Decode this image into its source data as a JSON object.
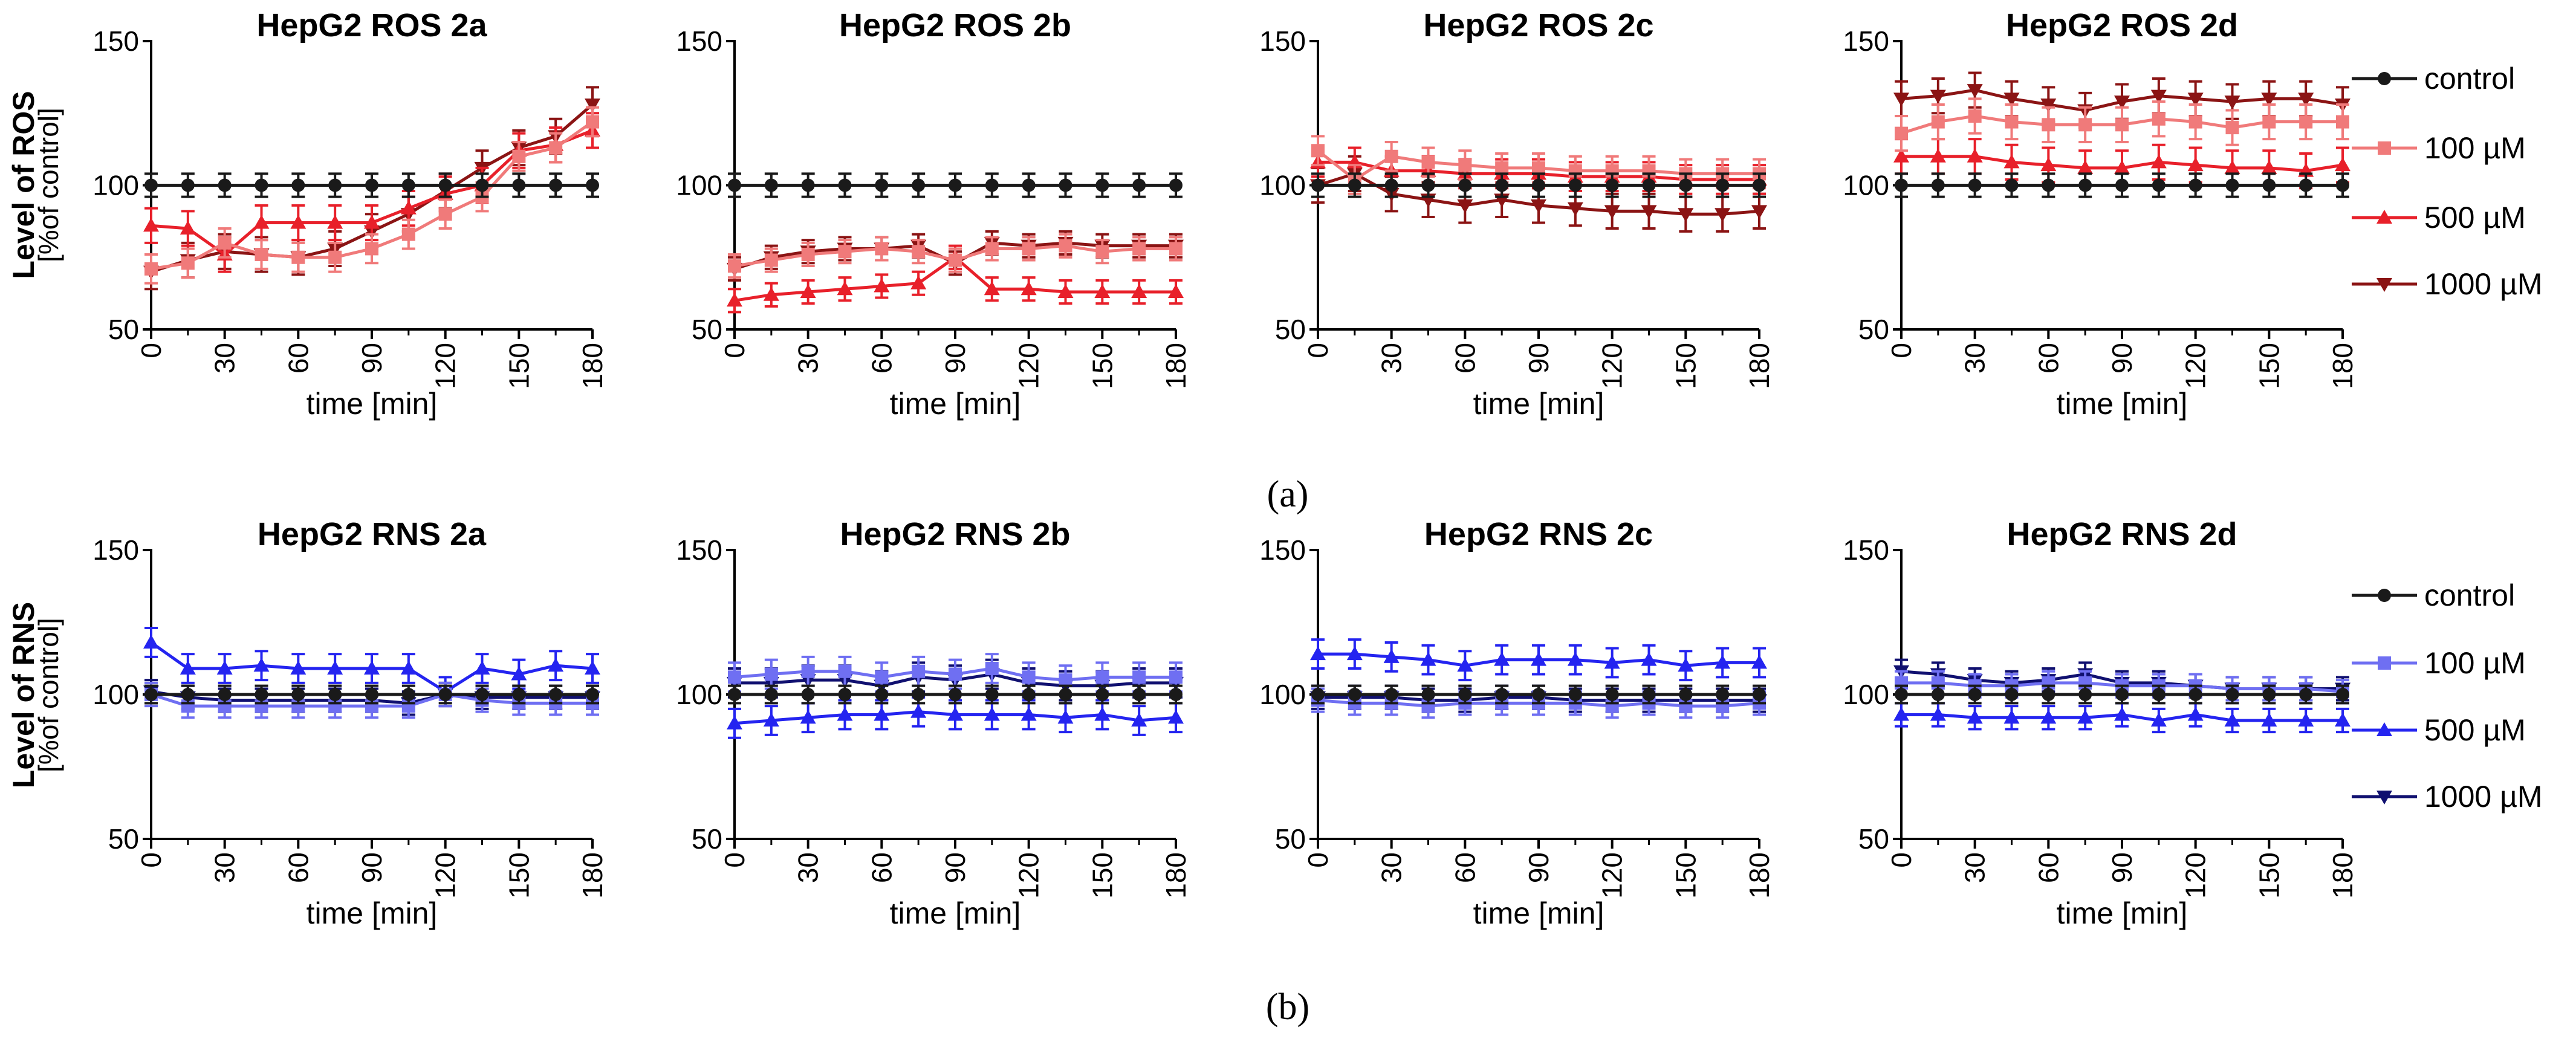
{
  "captions": {
    "a": "(a)",
    "b": "(b)"
  },
  "axes": {
    "xlabel": "time [min]",
    "x_ticks": [
      0,
      30,
      60,
      90,
      120,
      150,
      180
    ],
    "y_ticks": [
      50,
      100,
      150
    ],
    "xlim": [
      0,
      180
    ],
    "ylim": [
      50,
      150
    ],
    "ros_ylabel": "Level of ROS",
    "rns_ylabel": "Level of RNS",
    "ylabel_unit": "[%of control]"
  },
  "legend_labels": [
    "control",
    "100 µM",
    "500 µM",
    "1000 µM"
  ],
  "colors": {
    "control": "#1a1a1a",
    "ros_100": "#f07a7a",
    "ros_500": "#e8202a",
    "ros_1000": "#8b1414",
    "rns_100": "#6f6ff2",
    "rns_500": "#2424f0",
    "rns_1000": "#101070"
  },
  "chart_data": [
    {
      "type": "line",
      "row": "ros",
      "title": "HepG2 ROS 2a",
      "x": [
        0,
        15,
        30,
        45,
        60,
        75,
        90,
        105,
        120,
        135,
        150,
        165,
        180
      ],
      "series": [
        {
          "name": "control",
          "values": [
            100,
            100,
            100,
            100,
            100,
            100,
            100,
            100,
            100,
            100,
            100,
            100,
            100
          ],
          "err": 4
        },
        {
          "name": "100 µM",
          "values": [
            71,
            73,
            80,
            76,
            75,
            75,
            78,
            83,
            90,
            96,
            110,
            113,
            122
          ],
          "err": 5
        },
        {
          "name": "500 µM",
          "values": [
            86,
            85,
            76,
            87,
            87,
            87,
            87,
            92,
            97,
            100,
            112,
            114,
            119
          ],
          "err": 6
        },
        {
          "name": "1000 µM",
          "values": [
            70,
            74,
            77,
            76,
            75,
            78,
            84,
            90,
            98,
            106,
            113,
            117,
            128
          ],
          "err": 6
        }
      ]
    },
    {
      "type": "line",
      "row": "ros",
      "title": "HepG2 ROS 2b",
      "x": [
        0,
        15,
        30,
        45,
        60,
        75,
        90,
        105,
        120,
        135,
        150,
        165,
        180
      ],
      "series": [
        {
          "name": "control",
          "values": [
            100,
            100,
            100,
            100,
            100,
            100,
            100,
            100,
            100,
            100,
            100,
            100,
            100
          ],
          "err": 4
        },
        {
          "name": "100 µM",
          "values": [
            72,
            74,
            76,
            77,
            78,
            77,
            74,
            78,
            78,
            79,
            77,
            78,
            78
          ],
          "err": 4
        },
        {
          "name": "500 µM",
          "values": [
            60,
            62,
            63,
            64,
            65,
            66,
            75,
            64,
            64,
            63,
            63,
            63,
            63
          ],
          "err": 4
        },
        {
          "name": "1000 µM",
          "values": [
            71,
            75,
            77,
            78,
            78,
            79,
            73,
            80,
            79,
            80,
            79,
            79,
            79
          ],
          "err": 4
        }
      ]
    },
    {
      "type": "line",
      "row": "ros",
      "title": "HepG2 ROS 2c",
      "x": [
        0,
        15,
        30,
        45,
        60,
        75,
        90,
        105,
        120,
        135,
        150,
        165,
        180
      ],
      "series": [
        {
          "name": "control",
          "values": [
            100,
            100,
            100,
            100,
            100,
            100,
            100,
            100,
            100,
            100,
            100,
            100,
            100
          ],
          "err": 4
        },
        {
          "name": "100 µM",
          "values": [
            112,
            102,
            110,
            108,
            107,
            106,
            106,
            105,
            105,
            105,
            104,
            104,
            104
          ],
          "err": 5
        },
        {
          "name": "500 µM",
          "values": [
            108,
            108,
            105,
            105,
            104,
            104,
            104,
            103,
            103,
            103,
            102,
            102,
            102
          ],
          "err": 5
        },
        {
          "name": "1000 µM",
          "values": [
            100,
            104,
            97,
            95,
            93,
            95,
            93,
            92,
            91,
            91,
            90,
            90,
            91
          ],
          "err": 6
        }
      ]
    },
    {
      "type": "line",
      "row": "ros",
      "title": "HepG2 ROS 2d",
      "x": [
        0,
        15,
        30,
        45,
        60,
        75,
        90,
        105,
        120,
        135,
        150,
        165,
        180
      ],
      "series": [
        {
          "name": "control",
          "values": [
            100,
            100,
            100,
            100,
            100,
            100,
            100,
            100,
            100,
            100,
            100,
            100,
            100
          ],
          "err": 4
        },
        {
          "name": "100 µM",
          "values": [
            118,
            122,
            124,
            122,
            121,
            121,
            121,
            123,
            122,
            120,
            122,
            122,
            122
          ],
          "err": 6
        },
        {
          "name": "500 µM",
          "values": [
            110,
            110,
            110,
            108,
            107,
            106,
            106,
            108,
            107,
            106,
            106,
            105,
            107
          ],
          "err": 6
        },
        {
          "name": "1000 µM",
          "values": [
            130,
            131,
            133,
            130,
            128,
            126,
            129,
            131,
            130,
            129,
            130,
            130,
            128
          ],
          "err": 6
        }
      ]
    },
    {
      "type": "line",
      "row": "rns",
      "title": "HepG2 RNS 2a",
      "x": [
        0,
        15,
        30,
        45,
        60,
        75,
        90,
        105,
        120,
        135,
        150,
        165,
        180
      ],
      "series": [
        {
          "name": "control",
          "values": [
            100,
            100,
            100,
            100,
            100,
            100,
            100,
            100,
            100,
            100,
            100,
            100,
            100
          ],
          "err": 3
        },
        {
          "name": "100 µM",
          "values": [
            100,
            96,
            96,
            96,
            96,
            96,
            96,
            96,
            100,
            98,
            97,
            97,
            97
          ],
          "err": 4
        },
        {
          "name": "500 µM",
          "values": [
            118,
            109,
            109,
            110,
            109,
            109,
            109,
            109,
            101,
            109,
            107,
            110,
            109
          ],
          "err": 5
        },
        {
          "name": "1000 µM",
          "values": [
            101,
            99,
            98,
            98,
            98,
            98,
            98,
            97,
            100,
            99,
            99,
            99,
            99
          ],
          "err": 4
        }
      ]
    },
    {
      "type": "line",
      "row": "rns",
      "title": "HepG2 RNS 2b",
      "x": [
        0,
        15,
        30,
        45,
        60,
        75,
        90,
        105,
        120,
        135,
        150,
        165,
        180
      ],
      "series": [
        {
          "name": "control",
          "values": [
            100,
            100,
            100,
            100,
            100,
            100,
            100,
            100,
            100,
            100,
            100,
            100,
            100
          ],
          "err": 3
        },
        {
          "name": "100 µM",
          "values": [
            106,
            107,
            108,
            108,
            106,
            108,
            107,
            109,
            106,
            105,
            106,
            106,
            106
          ],
          "err": 5
        },
        {
          "name": "500 µM",
          "values": [
            90,
            91,
            92,
            93,
            93,
            94,
            93,
            93,
            93,
            92,
            93,
            91,
            92
          ],
          "err": 5
        },
        {
          "name": "1000 µM",
          "values": [
            104,
            104,
            105,
            105,
            103,
            106,
            105,
            107,
            104,
            103,
            103,
            104,
            104
          ],
          "err": 5
        }
      ]
    },
    {
      "type": "line",
      "row": "rns",
      "title": "HepG2 RNS 2c",
      "x": [
        0,
        15,
        30,
        45,
        60,
        75,
        90,
        105,
        120,
        135,
        150,
        165,
        180
      ],
      "series": [
        {
          "name": "control",
          "values": [
            100,
            100,
            100,
            100,
            100,
            100,
            100,
            100,
            100,
            100,
            100,
            100,
            100
          ],
          "err": 3
        },
        {
          "name": "100 µM",
          "values": [
            98,
            97,
            97,
            96,
            97,
            97,
            97,
            97,
            96,
            97,
            96,
            96,
            97
          ],
          "err": 4
        },
        {
          "name": "500 µM",
          "values": [
            114,
            114,
            113,
            112,
            110,
            112,
            112,
            112,
            111,
            112,
            110,
            111,
            111
          ],
          "err": 5
        },
        {
          "name": "1000 µM",
          "values": [
            99,
            99,
            99,
            98,
            98,
            99,
            99,
            98,
            98,
            98,
            98,
            98,
            98
          ],
          "err": 4
        }
      ]
    },
    {
      "type": "line",
      "row": "rns",
      "title": "HepG2 RNS 2d",
      "x": [
        0,
        15,
        30,
        45,
        60,
        75,
        90,
        105,
        120,
        135,
        150,
        165,
        180
      ],
      "series": [
        {
          "name": "control",
          "values": [
            100,
            100,
            100,
            100,
            100,
            100,
            100,
            100,
            100,
            100,
            100,
            100,
            100
          ],
          "err": 3
        },
        {
          "name": "100 µM",
          "values": [
            104,
            104,
            103,
            103,
            104,
            104,
            103,
            103,
            103,
            102,
            102,
            102,
            101
          ],
          "err": 4
        },
        {
          "name": "500 µM",
          "values": [
            93,
            93,
            92,
            92,
            92,
            92,
            93,
            91,
            93,
            91,
            91,
            91,
            91
          ],
          "err": 4
        },
        {
          "name": "1000 µM",
          "values": [
            108,
            107,
            105,
            104,
            105,
            107,
            104,
            104,
            103,
            102,
            102,
            102,
            102
          ],
          "err": 4
        }
      ]
    }
  ]
}
